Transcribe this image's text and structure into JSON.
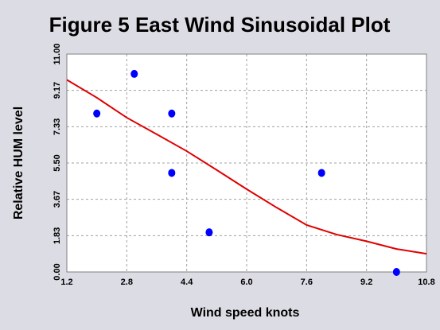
{
  "chart_data": {
    "type": "scatter",
    "title": "Figure 5 East Wind Sinusoidal Plot",
    "x_label": "Wind speed knots",
    "y_label": "Relative HUM level",
    "points": {
      "color": "#0000ff",
      "x": [
        2,
        3,
        4,
        4,
        5,
        8,
        10
      ],
      "y": [
        8,
        10,
        8,
        5,
        2,
        5,
        0
      ]
    },
    "curve": {
      "color": "#e00000",
      "x": [
        1.2,
        2.0,
        2.8,
        3.6,
        4.4,
        5.2,
        6.0,
        6.8,
        7.6,
        8.4,
        9.2,
        10.0,
        10.8
      ],
      "y": [
        9.7,
        8.8,
        7.79,
        6.95,
        6.1,
        5.15,
        4.18,
        3.25,
        2.37,
        1.89,
        1.55,
        1.16,
        0.92
      ]
    },
    "xlim": [
      1.2,
      10.8
    ],
    "xticks": [
      1.2,
      2.8,
      4.4,
      {
        "value": 6,
        "label": "6.0"
      },
      7.6,
      9.2,
      10.8
    ],
    "ylim": [
      0,
      11
    ],
    "yticks": [
      {
        "value": 0,
        "label": "0.00"
      },
      1.83,
      3.67,
      {
        "value": 5.5,
        "label": "5.50"
      },
      7.33,
      9.17,
      {
        "value": 11,
        "label": "11.00"
      }
    ],
    "grid": true
  }
}
